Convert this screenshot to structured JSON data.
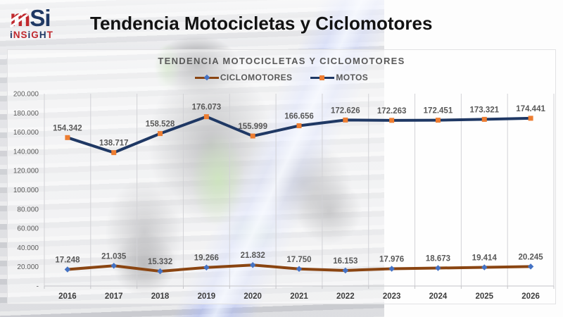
{
  "logo": {
    "m": "m",
    "si": "Si",
    "subtitle": "iNSiGHT",
    "subtitle_colors": [
      "#1f3864",
      "#c0282d",
      "#c0282d",
      "#1f3864",
      "#c0282d",
      "#1f3864",
      "#c0282d"
    ]
  },
  "header": {
    "title": "Tendencia Motocicletas y Ciclomotores"
  },
  "chart_data": {
    "type": "line",
    "title": "TENDENCIA MOTOCICLETAS Y CICLOMOTORES",
    "categories": [
      "2016",
      "2017",
      "2018",
      "2019",
      "2020",
      "2021",
      "2022",
      "2023",
      "2024",
      "2025",
      "2026"
    ],
    "series": [
      {
        "name": "CICLOMOTORES",
        "values": [
          17248,
          21035,
          15332,
          19266,
          21832,
          17750,
          16153,
          17976,
          18673,
          19414,
          20245
        ],
        "labels": [
          "17.248",
          "21.035",
          "15.332",
          "19.266",
          "21.832",
          "17.750",
          "16.153",
          "17.976",
          "18.673",
          "19.414",
          "20.245"
        ],
        "line_color": "#8a4512",
        "marker": "diamond",
        "marker_color": "#4472c4"
      },
      {
        "name": "MOTOS",
        "values": [
          154342,
          138717,
          158528,
          176073,
          155999,
          166656,
          172626,
          172263,
          172451,
          173321,
          174441
        ],
        "labels": [
          "154.342",
          "138.717",
          "158.528",
          "176.073",
          "155.999",
          "166.656",
          "172.626",
          "172.263",
          "172.451",
          "173.321",
          "174.441"
        ],
        "line_color": "#1f3864",
        "marker": "square",
        "marker_color": "#ed7d31"
      }
    ],
    "ylim": [
      0,
      200000
    ],
    "y_tick_step": 20000,
    "y_tick_labels": [
      "200.000",
      "180.000",
      "160.000",
      "140.000",
      "120.000",
      "100.000",
      "80.000",
      "60.000",
      "40.000",
      "20.000",
      "-"
    ],
    "grid": "vertical",
    "legend_position": "top",
    "data_labels": true
  },
  "colors": {
    "text_gray": "#595959",
    "axis_label": "#3d3d3d",
    "gridline": "#d2d2d6",
    "axis_line": "#c4c4c8",
    "logo_red": "#c0282d",
    "logo_navy": "#1f3864"
  }
}
